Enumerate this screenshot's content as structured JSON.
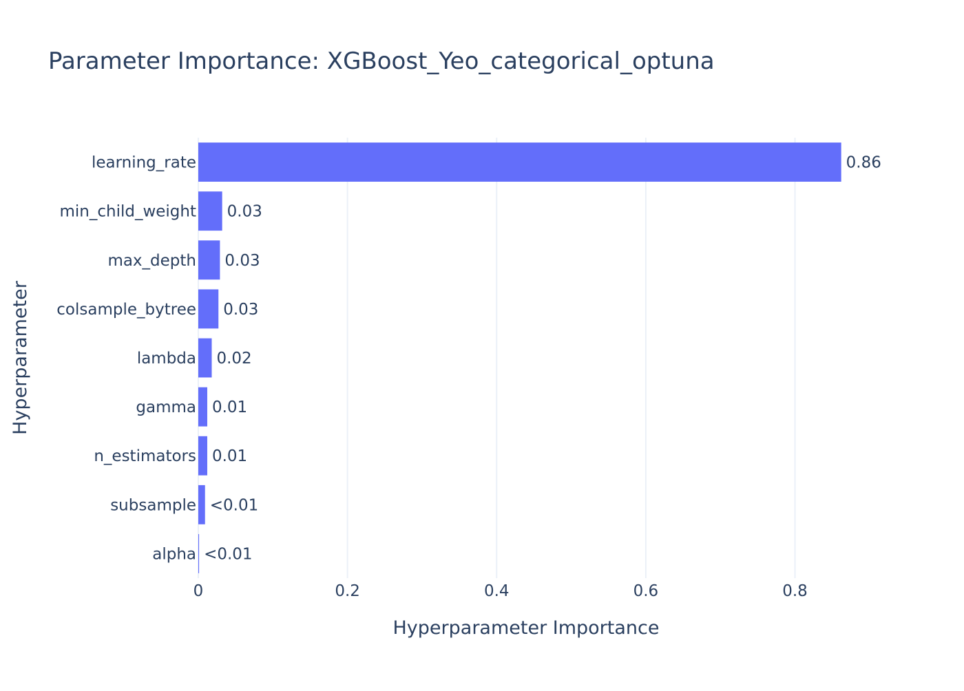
{
  "chart_data": {
    "type": "bar",
    "orientation": "horizontal",
    "title": "Parameter Importance: XGBoost_Yeo_categorical_optuna",
    "xlabel": "Hyperparameter Importance",
    "ylabel": "Hyperparameter",
    "xlim": [
      0,
      0.962
    ],
    "xticks": [
      0,
      0.2,
      0.4,
      0.6,
      0.8
    ],
    "xtick_labels": [
      "0",
      "0.2",
      "0.4",
      "0.6",
      "0.8"
    ],
    "grid": "vertical",
    "categories": [
      "learning_rate",
      "min_child_weight",
      "max_depth",
      "colsample_bytree",
      "lambda",
      "gamma",
      "n_estimators",
      "subsample",
      "alpha"
    ],
    "values": [
      0.862,
      0.032,
      0.029,
      0.027,
      0.018,
      0.012,
      0.012,
      0.009,
      0.001
    ],
    "data_labels": [
      "0.86",
      "0.03",
      "0.03",
      "0.03",
      "0.02",
      "0.01",
      "0.01",
      "<0.01",
      "<0.01"
    ],
    "colors": {
      "bar": "#636efa",
      "text": "#2a3f5f",
      "grid": "#ebf0f8",
      "background": "#ffffff"
    }
  }
}
